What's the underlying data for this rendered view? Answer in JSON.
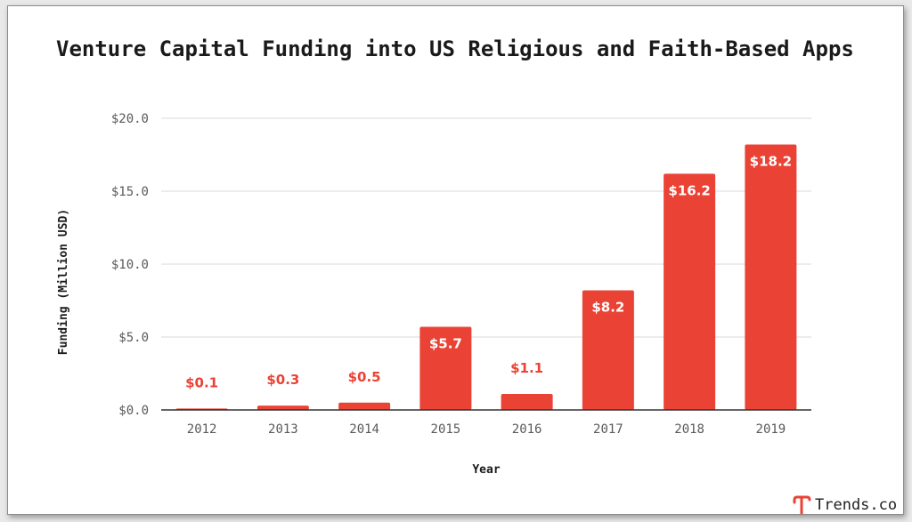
{
  "chart_data": {
    "type": "bar",
    "title": "Venture Capital Funding into US Religious and Faith-Based Apps",
    "xlabel": "Year",
    "ylabel": "Funding (Million USD)",
    "categories": [
      "2012",
      "2013",
      "2014",
      "2015",
      "2016",
      "2017",
      "2018",
      "2019"
    ],
    "values": [
      0.1,
      0.3,
      0.5,
      5.7,
      1.1,
      8.2,
      16.2,
      18.2
    ],
    "data_labels": [
      "$0.1",
      "$0.3",
      "$0.5",
      "$5.7",
      "$1.1",
      "$8.2",
      "$16.2",
      "$18.2"
    ],
    "ylim": [
      0,
      20
    ],
    "yticks": [
      0,
      5,
      10,
      15,
      20
    ],
    "ytick_labels": [
      "$0.0",
      "$5.0",
      "$10.0",
      "$15.0",
      "$20.0"
    ],
    "grid": true,
    "legend": "none",
    "bar_color": "#ea4335"
  },
  "branding": {
    "text": "Trends.co",
    "icon": "trends-logo-icon",
    "color": "#ea4335"
  }
}
